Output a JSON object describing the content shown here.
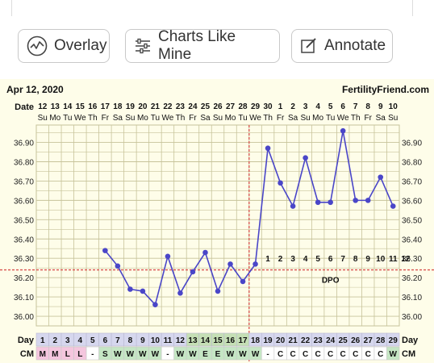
{
  "toolbar": {
    "overlay_label": "Overlay",
    "charts_like_mine_label": "Charts Like Mine",
    "annotate_label": "Annotate"
  },
  "chart_data": {
    "type": "line",
    "date_label": "Apr 12, 2020",
    "brand": "FertilityFriend.com",
    "date_row_label": "Date",
    "dates": [
      "12",
      "13",
      "14",
      "15",
      "16",
      "17",
      "18",
      "19",
      "20",
      "21",
      "22",
      "23",
      "24",
      "25",
      "26",
      "27",
      "28",
      "29",
      "30",
      "1",
      "2",
      "3",
      "4",
      "5",
      "6",
      "7",
      "8",
      "9",
      "10"
    ],
    "weekdays": [
      "Su",
      "Mo",
      "Tu",
      "We",
      "Th",
      "Fr",
      "Sa",
      "Su",
      "Mo",
      "Tu",
      "We",
      "Th",
      "Fr",
      "Sa",
      "Su",
      "Mo",
      "Tu",
      "We",
      "Th",
      "Fr",
      "Sa",
      "Su",
      "Mo",
      "Tu",
      "We",
      "Th",
      "Fr",
      "Sa",
      "Su"
    ],
    "ylim": [
      35.95,
      36.99
    ],
    "y_ticks": [
      "36.90",
      "36.80",
      "36.70",
      "36.60",
      "36.50",
      "36.40",
      "36.30",
      "36.20",
      "36.10",
      "36.00"
    ],
    "temps": [
      null,
      null,
      null,
      null,
      null,
      36.34,
      36.26,
      36.14,
      36.13,
      36.06,
      36.31,
      36.12,
      36.23,
      36.33,
      36.13,
      36.27,
      36.18,
      36.27,
      36.87,
      36.69,
      36.57,
      36.82,
      36.59,
      36.59,
      36.96,
      36.6,
      36.6,
      36.72,
      36.57
    ],
    "coverline": 36.24,
    "ovulation_day": 17,
    "dpo_label": "DPO",
    "dpo_numbers": [
      "1",
      "2",
      "3",
      "4",
      "5",
      "6",
      "7",
      "8",
      "9",
      "10",
      "11",
      "12"
    ],
    "days_label": "Day",
    "days": [
      "1",
      "2",
      "3",
      "4",
      "5",
      "6",
      "7",
      "8",
      "9",
      "10",
      "11",
      "12",
      "13",
      "14",
      "15",
      "16",
      "17",
      "18",
      "19",
      "20",
      "21",
      "22",
      "23",
      "24",
      "25",
      "26",
      "27",
      "28",
      "29"
    ],
    "cm_label": "CM",
    "cm": [
      "M",
      "M",
      "L",
      "L",
      "-",
      "S",
      "W",
      "W",
      "W",
      "W",
      "-",
      "W",
      "W",
      "E",
      "E",
      "W",
      "W",
      "W",
      "-",
      "C",
      "C",
      "C",
      "C",
      "C",
      "C",
      "C",
      "C",
      "C",
      "W"
    ],
    "colors": {
      "line": "#4a46c8",
      "coverline": "#d9534f",
      "ovulation": "#d9534f",
      "grid": "#c7c39a",
      "panel": "#fefde9",
      "day_cell": "#d6d7ee",
      "day_fertile": "#c5dfb5",
      "cm_menses": "#f4c6de",
      "cm_fertile": "#c5e6c4",
      "cm_other": "#ffffff"
    }
  }
}
